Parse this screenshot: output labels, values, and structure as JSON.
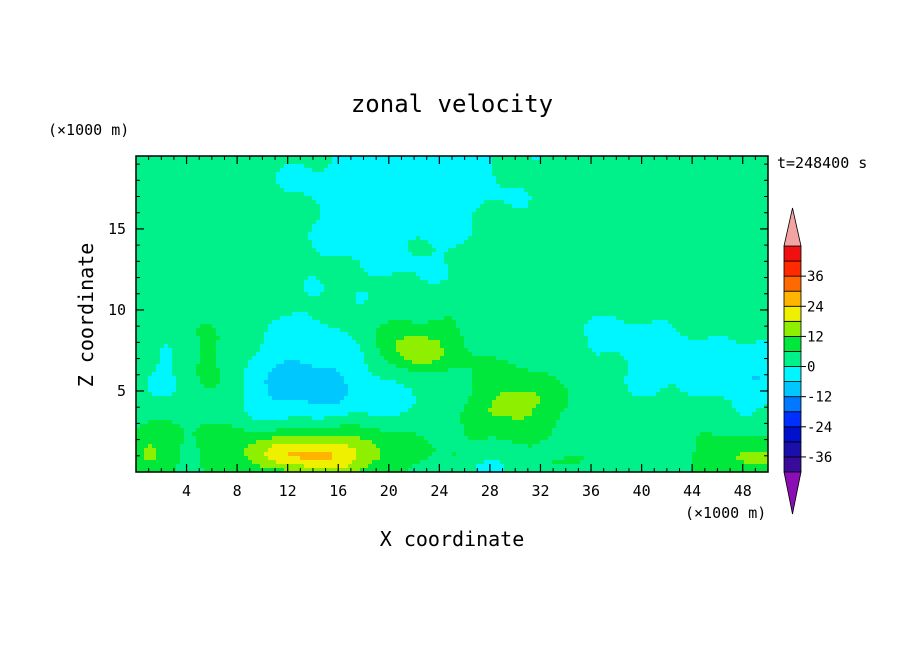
{
  "chart_data": {
    "type": "heatmap",
    "title": "zonal velocity",
    "xlabel": "X coordinate",
    "ylabel": "Z coordinate",
    "x_unit": "(×1000 m)",
    "y_unit": "(×1000 m)",
    "time_label": "t=248400 s",
    "xlim": [
      0,
      50
    ],
    "ylim": [
      0,
      19.5
    ],
    "x_ticks": [
      4,
      8,
      12,
      16,
      20,
      24,
      28,
      32,
      36,
      40,
      44,
      48
    ],
    "y_ticks": [
      5,
      10,
      15
    ],
    "colorbar": {
      "ticks": [
        36,
        24,
        12,
        0,
        -12,
        -24,
        -36
      ],
      "levels": [
        {
          "from": -42,
          "to": -36,
          "color": "#3a0a9a"
        },
        {
          "from": -36,
          "to": -30,
          "color": "#1a0fa8"
        },
        {
          "from": -30,
          "to": -24,
          "color": "#0010cc"
        },
        {
          "from": -24,
          "to": -18,
          "color": "#0030ff"
        },
        {
          "from": -18,
          "to": -12,
          "color": "#0078ff"
        },
        {
          "from": -12,
          "to": -6,
          "color": "#00c8ff"
        },
        {
          "from": -6,
          "to": 0,
          "color": "#00f6ff"
        },
        {
          "from": 0,
          "to": 6,
          "color": "#00f08a"
        },
        {
          "from": 6,
          "to": 12,
          "color": "#00e83c"
        },
        {
          "from": 12,
          "to": 18,
          "color": "#8ef000"
        },
        {
          "from": 18,
          "to": 24,
          "color": "#eef000"
        },
        {
          "from": 24,
          "to": 30,
          "color": "#ffb400"
        },
        {
          "from": 30,
          "to": 36,
          "color": "#ff6a00"
        },
        {
          "from": 36,
          "to": 42,
          "color": "#ff2a00"
        },
        {
          "from": 42,
          "to": 48,
          "color": "#f01010"
        }
      ],
      "under_color": "#8a0eb4",
      "over_color": "#f4a3a3"
    },
    "field": {
      "background_value": 3,
      "features": [
        {
          "x": 20,
          "z": 15,
          "sx": 6,
          "sz": 4,
          "amp": -4
        },
        {
          "x": 22,
          "z": 18.5,
          "sx": 7,
          "sz": 2,
          "amp": -4
        },
        {
          "x": 14,
          "z": 6.5,
          "sx": 4,
          "sz": 2,
          "amp": -9
        },
        {
          "x": 12,
          "z": 4.2,
          "sx": 4.5,
          "sz": 1.4,
          "amp": -6
        },
        {
          "x": 3,
          "z": 6,
          "sx": 1.5,
          "sz": 1.5,
          "amp": -5
        },
        {
          "x": 49,
          "z": 6,
          "sx": 2,
          "sz": 1.5,
          "amp": -7
        },
        {
          "x": 39,
          "z": 8,
          "sx": 4,
          "sz": 2,
          "amp": -4
        },
        {
          "x": 24,
          "z": 4.5,
          "sx": 4,
          "sz": 1.2,
          "amp": -5
        },
        {
          "x": 44,
          "z": 6.5,
          "sx": 3,
          "sz": 1.5,
          "amp": -4
        },
        {
          "x": 45,
          "z": 3,
          "sx": 2,
          "sz": 1.5,
          "amp": -3
        },
        {
          "x": 14,
          "z": 1,
          "sx": 3.5,
          "sz": 0.9,
          "amp": 17
        },
        {
          "x": 14,
          "z": 1.6,
          "sx": 7,
          "sz": 1.4,
          "amp": 7
        },
        {
          "x": 22,
          "z": 8,
          "sx": 3.5,
          "sz": 1.5,
          "amp": 8
        },
        {
          "x": 22,
          "z": 7.3,
          "sx": 1.5,
          "sz": 0.8,
          "amp": 8
        },
        {
          "x": 29.5,
          "z": 4.3,
          "sx": 3,
          "sz": 1.4,
          "amp": 13
        },
        {
          "x": 6,
          "z": 6,
          "sx": 1.8,
          "sz": 2.2,
          "amp": 7
        },
        {
          "x": 1,
          "z": 1.4,
          "sx": 1.4,
          "sz": 1.2,
          "amp": 8
        },
        {
          "x": 48,
          "z": 0.9,
          "sx": 3,
          "sz": 1,
          "amp": 10
        },
        {
          "x": 44.5,
          "z": 3.3,
          "sx": 1.2,
          "sz": 1,
          "amp": 5
        },
        {
          "x": 33,
          "z": 0.6,
          "sx": 2,
          "sz": 0.5,
          "amp": 4
        },
        {
          "x": 28,
          "z": 0.3,
          "sx": 1.5,
          "sz": 0.4,
          "amp": -6
        },
        {
          "x": 12,
          "z": 0.3,
          "sx": 1.2,
          "sz": 0.35,
          "amp": -4
        }
      ]
    }
  }
}
